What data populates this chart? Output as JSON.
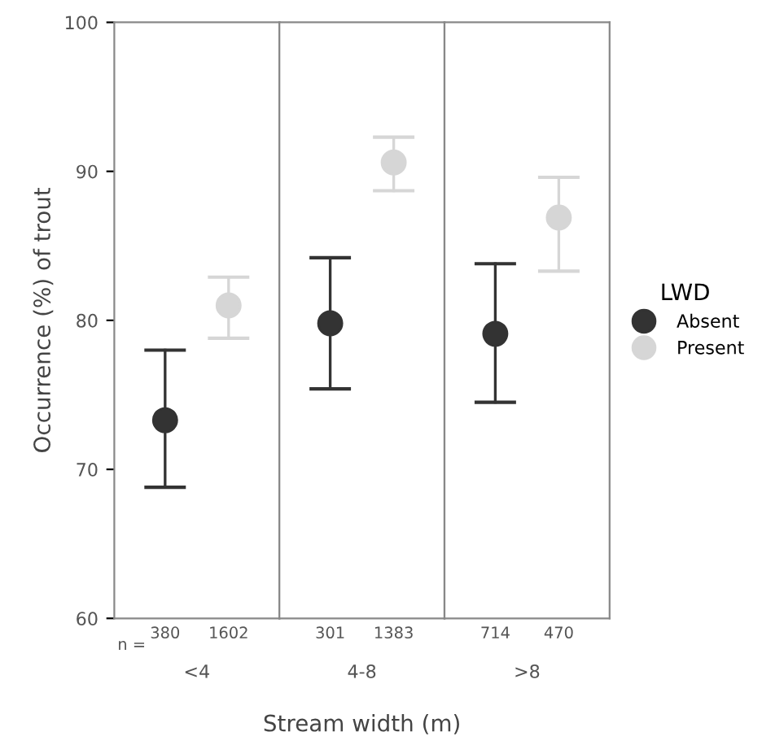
{
  "chart_data": [
    {
      "type": "scatter",
      "xlabel": "<4",
      "ylabel": "Occurrence (%) of trout",
      "categories": [
        "380",
        "1602"
      ],
      "ylim": [
        60,
        100
      ],
      "yticks": [
        60,
        70,
        80,
        90,
        100
      ],
      "marker": "circle",
      "tick_labels": "xy",
      "annotations": [
        "n ="
      ],
      "series": [
        {
          "color": "#333333",
          "values": [
            73.3,
            null
          ],
          "errors": [
            [
              68.8,
              78.0
            ],
            null
          ]
        },
        {
          "color": "#d6d6d6",
          "values": [
            null,
            81.0
          ],
          "errors": [
            null,
            [
              78.8,
              82.9
            ]
          ]
        }
      ]
    },
    {
      "type": "scatter",
      "xlabel": "4-8",
      "categories": [
        "301",
        "1383"
      ],
      "ylim": [
        60,
        100
      ],
      "marker": "circle",
      "tick_labels": "x",
      "annotations": [
        "Stream width (m)"
      ],
      "series": [
        {
          "color": "#333333",
          "values": [
            79.8,
            null
          ],
          "errors": [
            [
              75.4,
              84.2
            ],
            null
          ]
        },
        {
          "color": "#d6d6d6",
          "values": [
            null,
            90.6
          ],
          "errors": [
            null,
            [
              88.7,
              92.3
            ]
          ]
        }
      ]
    },
    {
      "type": "scatter",
      "xlabel": ">8",
      "categories": [
        "714",
        "470"
      ],
      "ylim": [
        60,
        100
      ],
      "marker": "circle",
      "tick_labels": "x",
      "legend": "right",
      "legend_title": "LWD",
      "series": [
        {
          "name": "Absent",
          "color": "#333333",
          "values": [
            79.1,
            null
          ],
          "errors": [
            [
              74.5,
              83.8
            ],
            null
          ]
        },
        {
          "name": "Present",
          "color": "#d6d6d6",
          "values": [
            null,
            86.9
          ],
          "errors": [
            null,
            [
              83.3,
              89.6
            ]
          ]
        }
      ]
    }
  ]
}
